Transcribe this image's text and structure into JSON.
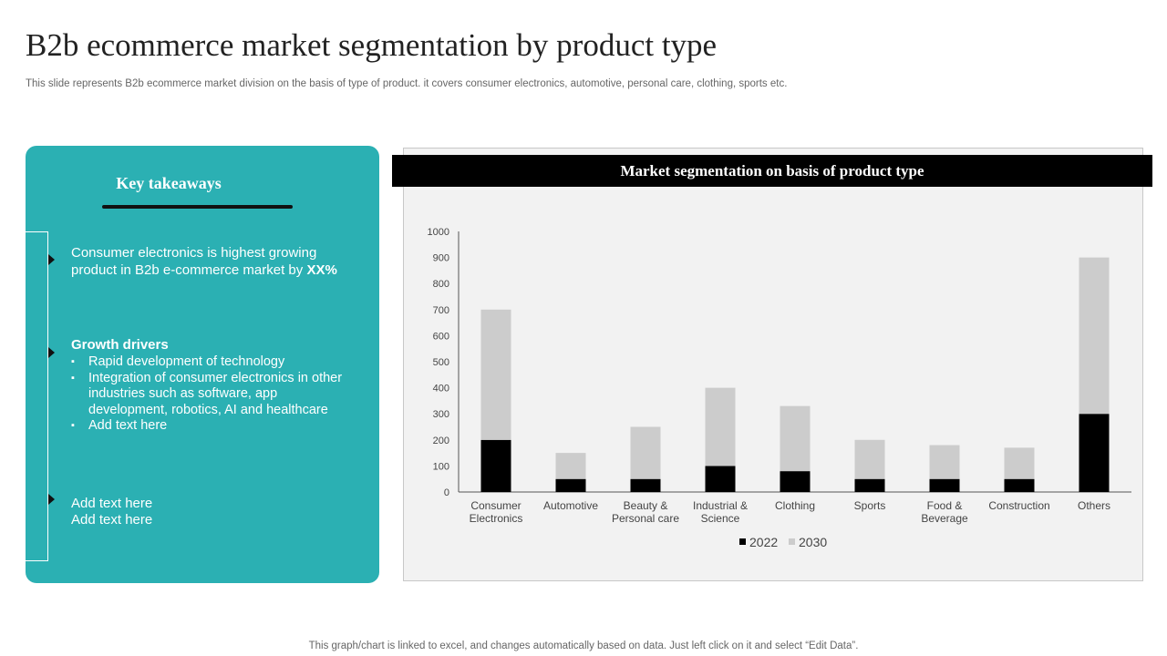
{
  "title": "B2b ecommerce market segmentation by product type",
  "subtitle": "This slide represents B2b ecommerce market division on the basis of type of product. it covers consumer electronics, automotive, personal care, clothing, sports etc.",
  "takeaways": {
    "title": "Key takeaways",
    "point1_text": "Consumer electronics is highest growing product in B2b e-commerce market by ",
    "point1_bold": "XX%",
    "growth_title": "Growth drivers",
    "growth_items": [
      "Rapid development of technology",
      "Integration of consumer electronics in other industries such as software, app development, robotics, AI and healthcare",
      "Add text here"
    ],
    "point3_line1": "Add text here",
    "point3_line2": "Add text here"
  },
  "chart_header": "Market segmentation on basis of product type",
  "footer": "This graph/chart is linked to excel, and changes automatically based on data. Just left click on it and select “Edit Data”.",
  "colors": {
    "panel": "#2bb0b3",
    "series_2022": "#000000",
    "series_2030": "#cccccc"
  },
  "chart_data": {
    "type": "bar",
    "stacked": true,
    "title": "Market segmentation on basis of product type",
    "categories": [
      [
        "Consumer",
        "Electronics"
      ],
      [
        "Automotive"
      ],
      [
        "Beauty &",
        "Personal care"
      ],
      [
        "Industrial &",
        "Science"
      ],
      [
        "Clothing"
      ],
      [
        "Sports"
      ],
      [
        "Food &",
        "Beverage"
      ],
      [
        "Construction"
      ],
      [
        "Others"
      ]
    ],
    "series": [
      {
        "name": "2022",
        "color": "#000000",
        "values": [
          200,
          50,
          50,
          100,
          80,
          50,
          50,
          50,
          300
        ]
      },
      {
        "name": "2030",
        "color": "#cccccc",
        "values": [
          500,
          100,
          200,
          300,
          250,
          150,
          130,
          120,
          600
        ]
      }
    ],
    "yticks": [
      0,
      100,
      200,
      300,
      400,
      500,
      600,
      700,
      800,
      900,
      1000
    ],
    "ylim": [
      0,
      1000
    ],
    "grid": false,
    "legend": "bottom"
  }
}
